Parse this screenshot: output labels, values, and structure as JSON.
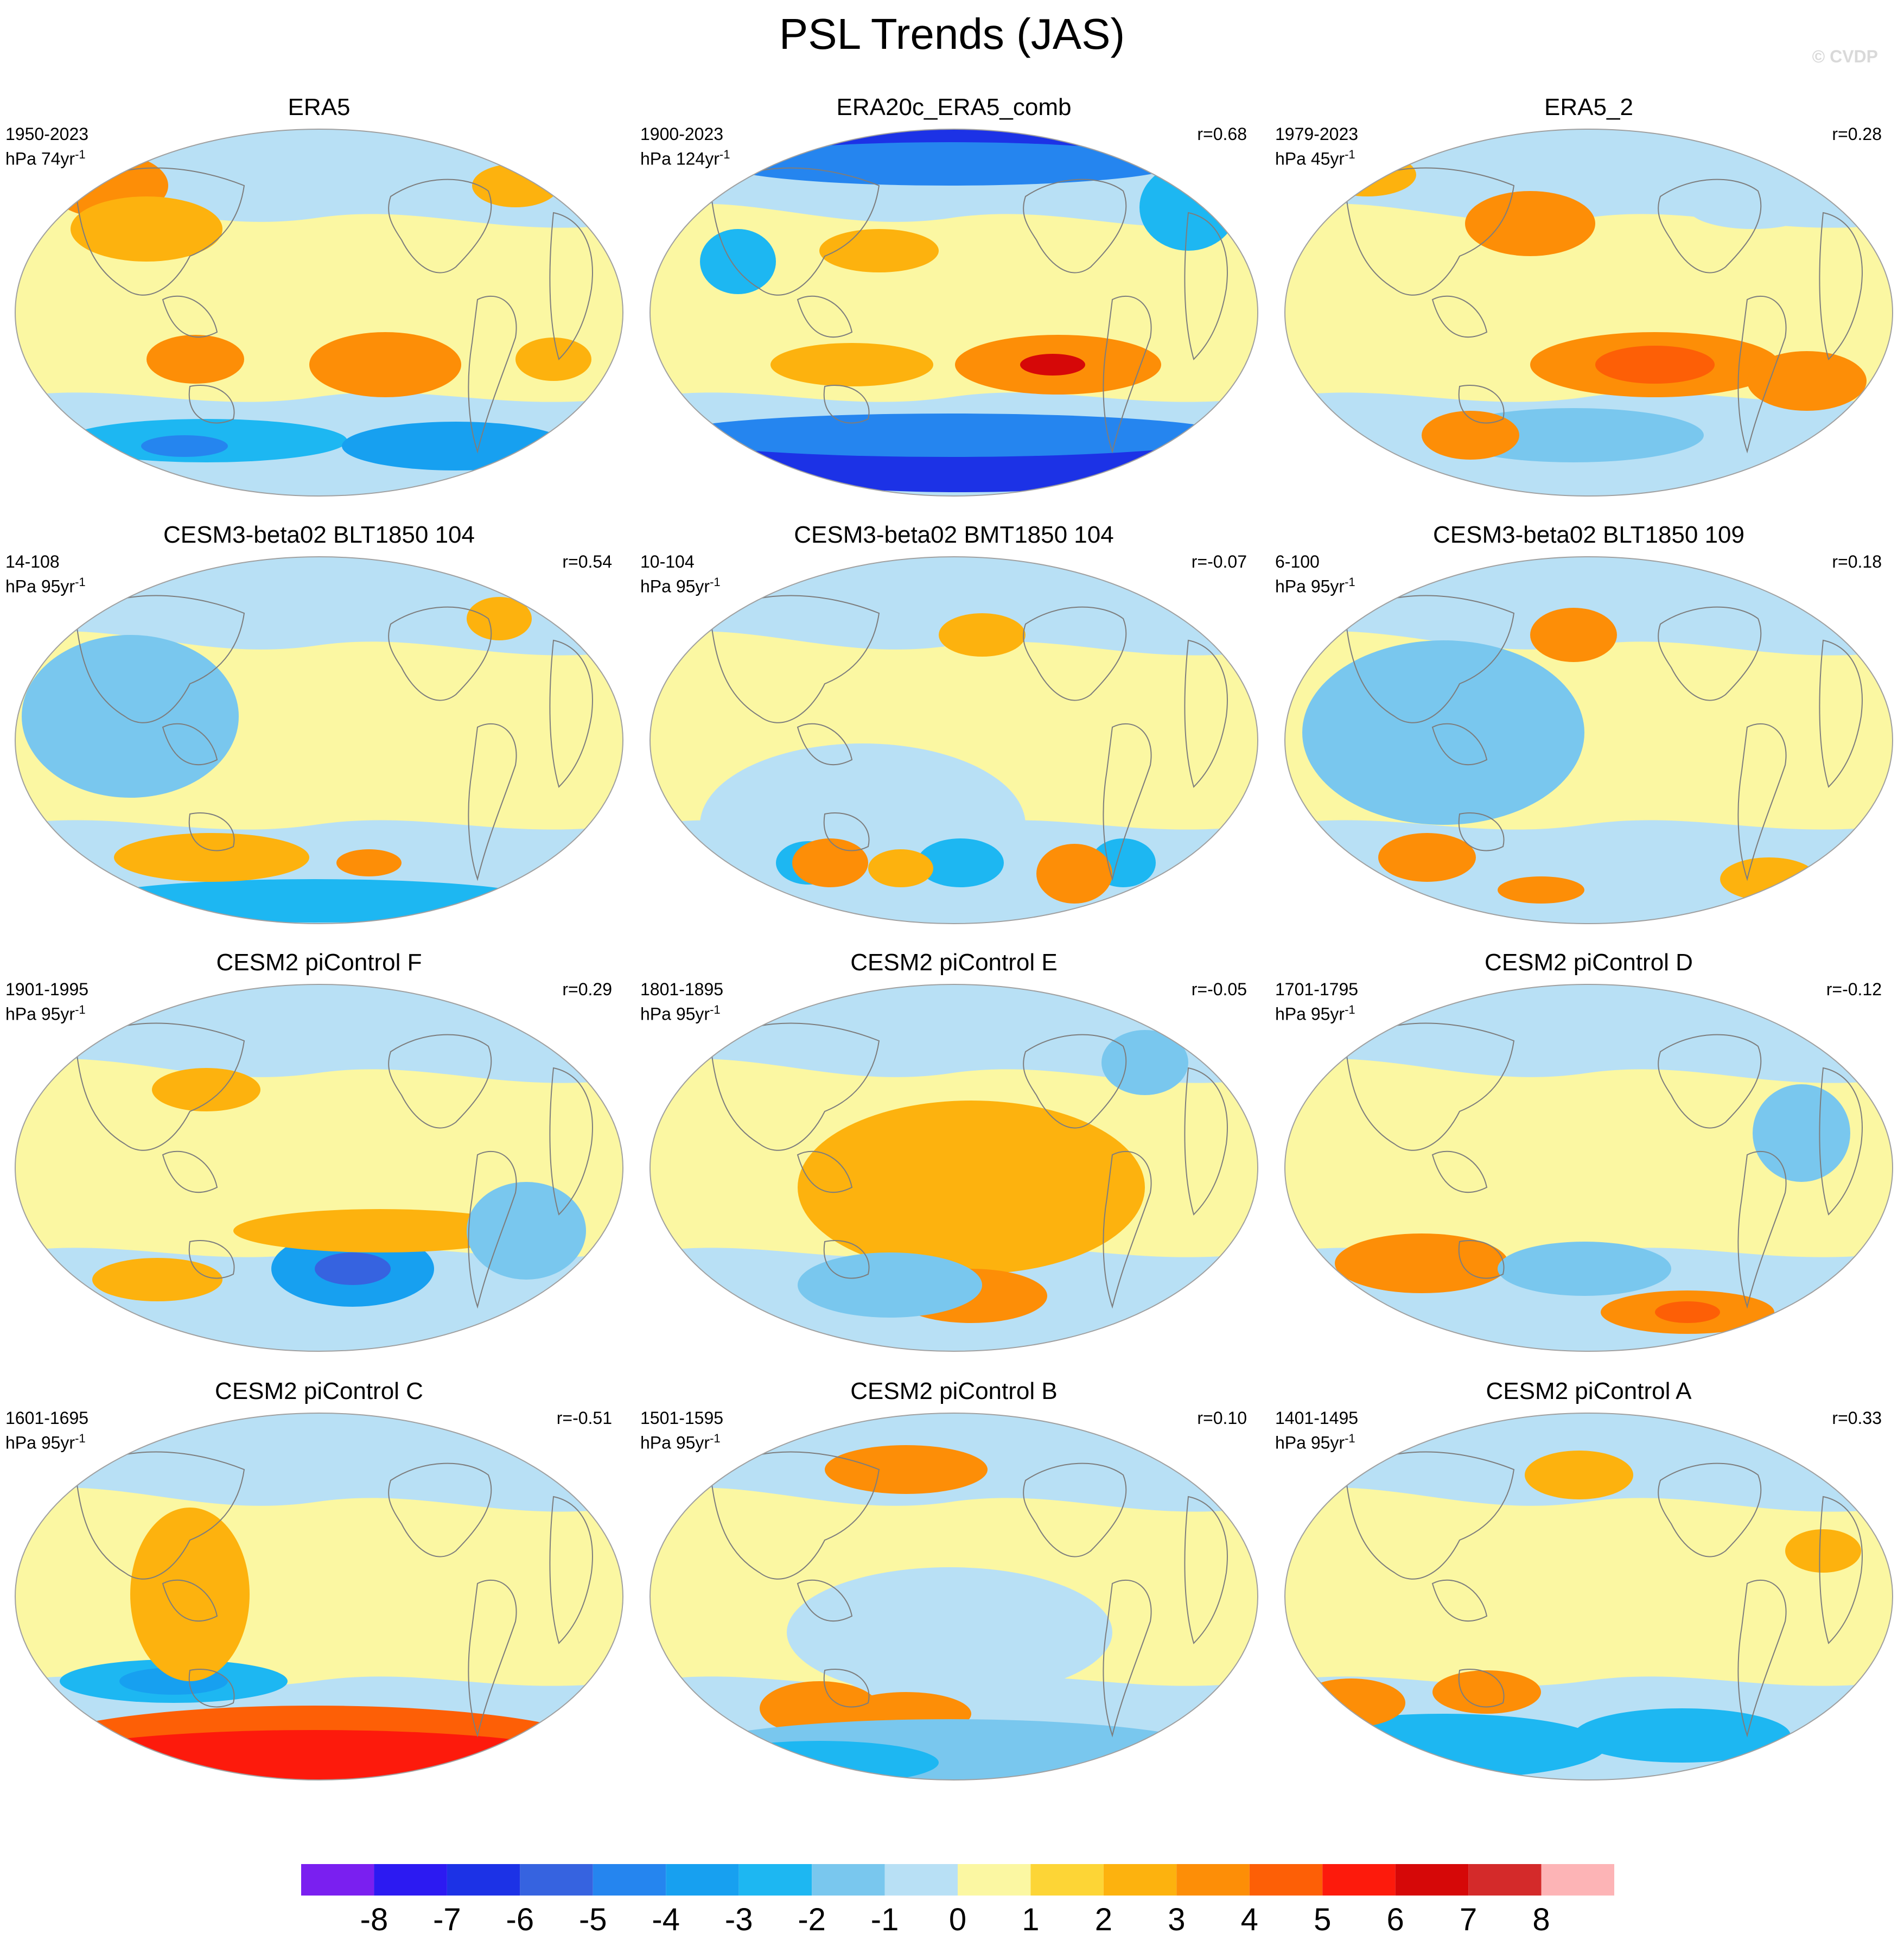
{
  "title": "PSL Trends (JAS)",
  "credit": "© CVDP",
  "colors": {
    "contour_fill": [
      "#7a1ff0",
      "#2c1af2",
      "#1c32e6",
      "#3663e0",
      "#2585ef",
      "#17a0f0",
      "#1db7f2",
      "#79c7ee",
      "#b8e0f5",
      "#fbf7a2",
      "#fdd536",
      "#fdb20e",
      "#fd8e07",
      "#fd5f06",
      "#fd1a0c",
      "#d60808",
      "#d42a2a",
      "#fdb4b6"
    ],
    "coastline": "#7d7d7d",
    "map_outline": "#a0a0a0"
  },
  "chart_data": {
    "type": "heatmap",
    "projection": "robinson-like global map, Pacific-centred",
    "unit": "hPa",
    "colorbar": {
      "levels": [
        -8,
        -7,
        -6,
        -5,
        -4,
        -3,
        -2,
        -1,
        0,
        1,
        2,
        3,
        4,
        5,
        6,
        7,
        8
      ],
      "tick_labels": [
        "-8",
        "-7",
        "-6",
        "-5",
        "-4",
        "-3",
        "-2",
        "-1",
        "0",
        "1",
        "2",
        "3",
        "4",
        "5",
        "6",
        "7",
        "8"
      ]
    },
    "panels": [
      {
        "title": "ERA5",
        "period": "1950-2023",
        "units_main": "hPa 74yr",
        "units_exp": "-1",
        "corr": ""
      },
      {
        "title": "ERA20c_ERA5_comb",
        "period": "1900-2023",
        "units_main": "hPa 124yr",
        "units_exp": "-1",
        "corr": "r=0.68"
      },
      {
        "title": "ERA5_2",
        "period": "1979-2023",
        "units_main": "hPa 45yr",
        "units_exp": "-1",
        "corr": "r=0.28"
      },
      {
        "title": "CESM3-beta02 BLT1850 104",
        "period": "14-108",
        "units_main": "hPa 95yr",
        "units_exp": "-1",
        "corr": "r=0.54"
      },
      {
        "title": "CESM3-beta02 BMT1850 104",
        "period": "10-104",
        "units_main": "hPa 95yr",
        "units_exp": "-1",
        "corr": "r=-0.07"
      },
      {
        "title": "CESM3-beta02 BLT1850 109",
        "period": "6-100",
        "units_main": "hPa 95yr",
        "units_exp": "-1",
        "corr": "r=0.18"
      },
      {
        "title": "CESM2 piControl F",
        "period": "1901-1995",
        "units_main": "hPa 95yr",
        "units_exp": "-1",
        "corr": "r=0.29"
      },
      {
        "title": "CESM2 piControl E",
        "period": "1801-1895",
        "units_main": "hPa 95yr",
        "units_exp": "-1",
        "corr": "r=-0.05"
      },
      {
        "title": "CESM2 piControl D",
        "period": "1701-1795",
        "units_main": "hPa 95yr",
        "units_exp": "-1",
        "corr": "r=-0.12"
      },
      {
        "title": "CESM2 piControl C",
        "period": "1601-1695",
        "units_main": "hPa 95yr",
        "units_exp": "-1",
        "corr": "r=-0.51"
      },
      {
        "title": "CESM2 piControl B",
        "period": "1501-1595",
        "units_main": "hPa 95yr",
        "units_exp": "-1",
        "corr": "r=0.10"
      },
      {
        "title": "CESM2 piControl A",
        "period": "1401-1495",
        "units_main": "hPa 95yr",
        "units_exp": "-1",
        "corr": "r=0.33"
      }
    ]
  }
}
